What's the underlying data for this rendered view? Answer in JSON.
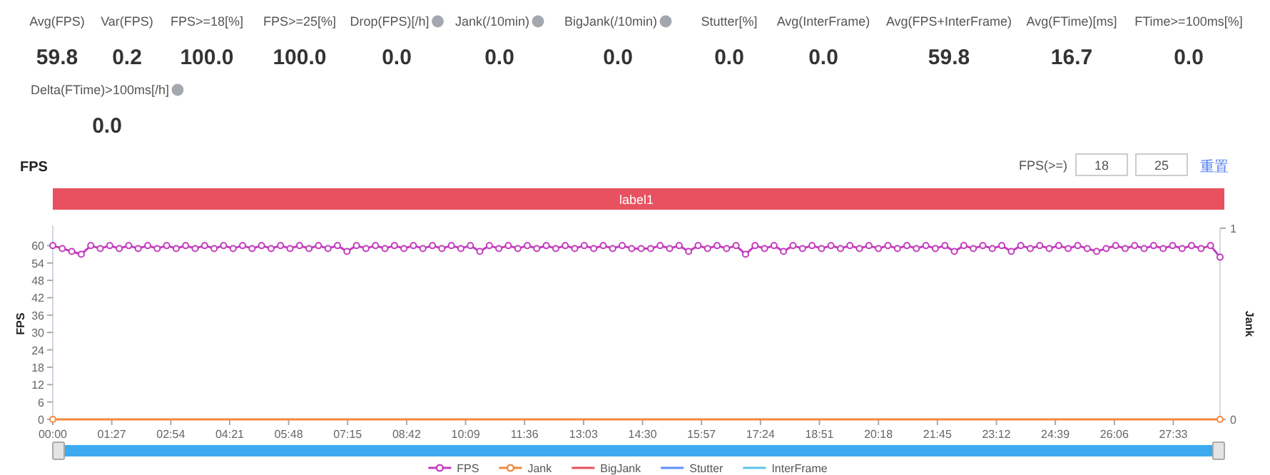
{
  "chart_data": [
    {
      "type": "other",
      "categories": [
        "Avg(FPS)",
        "Var(FPS)",
        "FPS>=18[%]",
        "FPS>=25[%]",
        "Drop(FPS)[/h]",
        "Jank(/10min)",
        "BigJank(/10min)",
        "Stutter[%]",
        "Avg(InterFrame)",
        "Avg(FPS+InterFrame)",
        "Avg(FTime)[ms]",
        "FTime>=100ms[%]",
        "Delta(FTime)>100ms[/h]"
      ],
      "value_labels": [
        "59.8",
        "0.2",
        "100.0",
        "100.0",
        "0.0",
        "0.0",
        "0.0",
        "0.0",
        "0.0",
        "59.8",
        "16.7",
        "0.0",
        "0.0"
      ]
    },
    {
      "type": "line",
      "title": "FPS",
      "ylabel": "FPS",
      "y2label": "Jank",
      "legend": "bottom",
      "annotations": [
        "FPS(>=)",
        "18",
        "25",
        "重置",
        "label1"
      ],
      "x": [
        0,
        14,
        28,
        42,
        56,
        70,
        84,
        98,
        112,
        126,
        140,
        154,
        168,
        182,
        196,
        210,
        224,
        238,
        252,
        266,
        280,
        294,
        308,
        322,
        336,
        350,
        364,
        378,
        392,
        406,
        420,
        434,
        448,
        462,
        476,
        490,
        504,
        518,
        532,
        546,
        560,
        574,
        588,
        602,
        616,
        630,
        644,
        658,
        672,
        686,
        700,
        714,
        728,
        742,
        756,
        770,
        784,
        798,
        812,
        826,
        840,
        854,
        868,
        882,
        896,
        910,
        924,
        938,
        952,
        966,
        980,
        994,
        1008,
        1022,
        1036,
        1050,
        1064,
        1078,
        1092,
        1106,
        1120,
        1134,
        1148,
        1162,
        1176,
        1190,
        1204,
        1218,
        1232,
        1246,
        1260,
        1274,
        1288,
        1302,
        1316,
        1330,
        1344,
        1358,
        1372,
        1386,
        1400,
        1414,
        1428,
        1442,
        1456,
        1470,
        1484,
        1498,
        1512,
        1526,
        1540,
        1554,
        1568,
        1582,
        1596,
        1610,
        1624,
        1638,
        1652,
        1666,
        1680,
        1694,
        1708,
        1722
      ],
      "xlim": [
        0,
        1722
      ],
      "xticks": [
        {
          "value": 0,
          "label": "00:00"
        },
        {
          "value": 87,
          "label": "01:27"
        },
        {
          "value": 174,
          "label": "02:54"
        },
        {
          "value": 261,
          "label": "04:21"
        },
        {
          "value": 348,
          "label": "05:48"
        },
        {
          "value": 435,
          "label": "07:15"
        },
        {
          "value": 522,
          "label": "08:42"
        },
        {
          "value": 609,
          "label": "10:09"
        },
        {
          "value": 696,
          "label": "11:36"
        },
        {
          "value": 783,
          "label": "13:03"
        },
        {
          "value": 870,
          "label": "14:30"
        },
        {
          "value": 957,
          "label": "15:57"
        },
        {
          "value": 1044,
          "label": "17:24"
        },
        {
          "value": 1131,
          "label": "18:51"
        },
        {
          "value": 1218,
          "label": "20:18"
        },
        {
          "value": 1305,
          "label": "21:45"
        },
        {
          "value": 1392,
          "label": "23:12"
        },
        {
          "value": 1479,
          "label": "24:39"
        },
        {
          "value": 1566,
          "label": "26:06"
        },
        {
          "value": 1653,
          "label": "27:33"
        }
      ],
      "ylim": [
        0,
        66
      ],
      "yticks": [
        0,
        6,
        12,
        18,
        24,
        30,
        36,
        42,
        48,
        54,
        60
      ],
      "y2lim": [
        0,
        1
      ],
      "y2ticks": [
        0,
        1
      ],
      "series": [
        {
          "name": "FPS",
          "color": "#c33cbd",
          "marker": "circle",
          "values": [
            60,
            59,
            58,
            57,
            60,
            59,
            60,
            59,
            60,
            59,
            60,
            59,
            60,
            59,
            60,
            59,
            60,
            59,
            60,
            59,
            60,
            59,
            60,
            59,
            60,
            59,
            60,
            59,
            60,
            59,
            60,
            58,
            60,
            59,
            60,
            59,
            60,
            59,
            60,
            59,
            60,
            59,
            60,
            59,
            60,
            58,
            60,
            59,
            60,
            59,
            60,
            59,
            60,
            59,
            60,
            59,
            60,
            59,
            60,
            59,
            60,
            59,
            59,
            59,
            60,
            59,
            60,
            58,
            60,
            59,
            60,
            59,
            60,
            57,
            60,
            59,
            60,
            58,
            60,
            59,
            60,
            59,
            60,
            59,
            60,
            59,
            60,
            59,
            60,
            59,
            60,
            59,
            60,
            59,
            60,
            58,
            60,
            59,
            60,
            59,
            60,
            58,
            60,
            59,
            60,
            59,
            60,
            59,
            60,
            59,
            58,
            59,
            60,
            59,
            60,
            59,
            60,
            59,
            60,
            59,
            60,
            59,
            60,
            56
          ]
        },
        {
          "name": "Jank",
          "color": "#f5873c",
          "marker": "circle",
          "x": [
            0,
            1722
          ],
          "values": [
            0,
            0
          ]
        },
        {
          "name": "BigJank",
          "color": "#e8515f",
          "values": [
            null,
            null,
            null,
            null,
            null,
            null,
            null,
            null,
            null,
            null,
            null,
            null,
            null,
            null,
            null,
            null,
            null,
            null,
            null,
            null,
            null,
            null,
            null,
            null,
            null,
            null,
            null,
            null,
            null,
            null,
            null,
            null,
            null,
            null,
            null,
            null,
            null,
            null,
            null,
            null,
            null,
            null,
            null,
            null,
            null,
            null,
            null,
            null,
            null,
            null,
            null,
            null,
            null,
            null,
            null,
            null,
            null,
            null,
            null,
            null,
            null,
            null,
            null,
            null,
            null,
            null,
            null,
            null,
            null,
            null,
            null,
            null,
            null,
            null,
            null,
            null,
            null,
            null,
            null,
            null,
            null,
            null,
            null,
            null,
            null,
            null,
            null,
            null,
            null,
            null,
            null,
            null,
            null,
            null,
            null,
            null,
            null,
            null,
            null,
            null,
            null,
            null,
            null,
            null,
            null,
            null,
            null,
            null,
            null,
            null,
            null,
            null,
            null,
            null,
            null,
            null,
            null,
            null,
            null,
            null,
            null,
            null,
            null,
            null
          ]
        },
        {
          "name": "Stutter",
          "color": "#5b8ff9",
          "values": [
            null,
            null,
            null,
            null,
            null,
            null,
            null,
            null,
            null,
            null,
            null,
            null,
            null,
            null,
            null,
            null,
            null,
            null,
            null,
            null,
            null,
            null,
            null,
            null,
            null,
            null,
            null,
            null,
            null,
            null,
            null,
            null,
            null,
            null,
            null,
            null,
            null,
            null,
            null,
            null,
            null,
            null,
            null,
            null,
            null,
            null,
            null,
            null,
            null,
            null,
            null,
            null,
            null,
            null,
            null,
            null,
            null,
            null,
            null,
            null,
            null,
            null,
            null,
            null,
            null,
            null,
            null,
            null,
            null,
            null,
            null,
            null,
            null,
            null,
            null,
            null,
            null,
            null,
            null,
            null,
            null,
            null,
            null,
            null,
            null,
            null,
            null,
            null,
            null,
            null,
            null,
            null,
            null,
            null,
            null,
            null,
            null,
            null,
            null,
            null,
            null,
            null,
            null,
            null,
            null,
            null,
            null,
            null,
            null,
            null,
            null,
            null,
            null,
            null,
            null,
            null,
            null,
            null,
            null,
            null,
            null,
            null,
            null,
            null
          ]
        },
        {
          "name": "InterFrame",
          "color": "#5bc4e8",
          "values": [
            null,
            null,
            null,
            null,
            null,
            null,
            null,
            null,
            null,
            null,
            null,
            null,
            null,
            null,
            null,
            null,
            null,
            null,
            null,
            null,
            null,
            null,
            null,
            null,
            null,
            null,
            null,
            null,
            null,
            null,
            null,
            null,
            null,
            null,
            null,
            null,
            null,
            null,
            null,
            null,
            null,
            null,
            null,
            null,
            null,
            null,
            null,
            null,
            null,
            null,
            null,
            null,
            null,
            null,
            null,
            null,
            null,
            null,
            null,
            null,
            null,
            null,
            null,
            null,
            null,
            null,
            null,
            null,
            null,
            null,
            null,
            null,
            null,
            null,
            null,
            null,
            null,
            null,
            null,
            null,
            null,
            null,
            null,
            null,
            null,
            null,
            null,
            null,
            null,
            null,
            null,
            null,
            null,
            null,
            null,
            null,
            null,
            null,
            null,
            null,
            null,
            null,
            null,
            null,
            null,
            null,
            null,
            null,
            null,
            null,
            null,
            null,
            null,
            null,
            null,
            null,
            null,
            null,
            null,
            null,
            null,
            null,
            null,
            null
          ]
        }
      ]
    }
  ]
}
